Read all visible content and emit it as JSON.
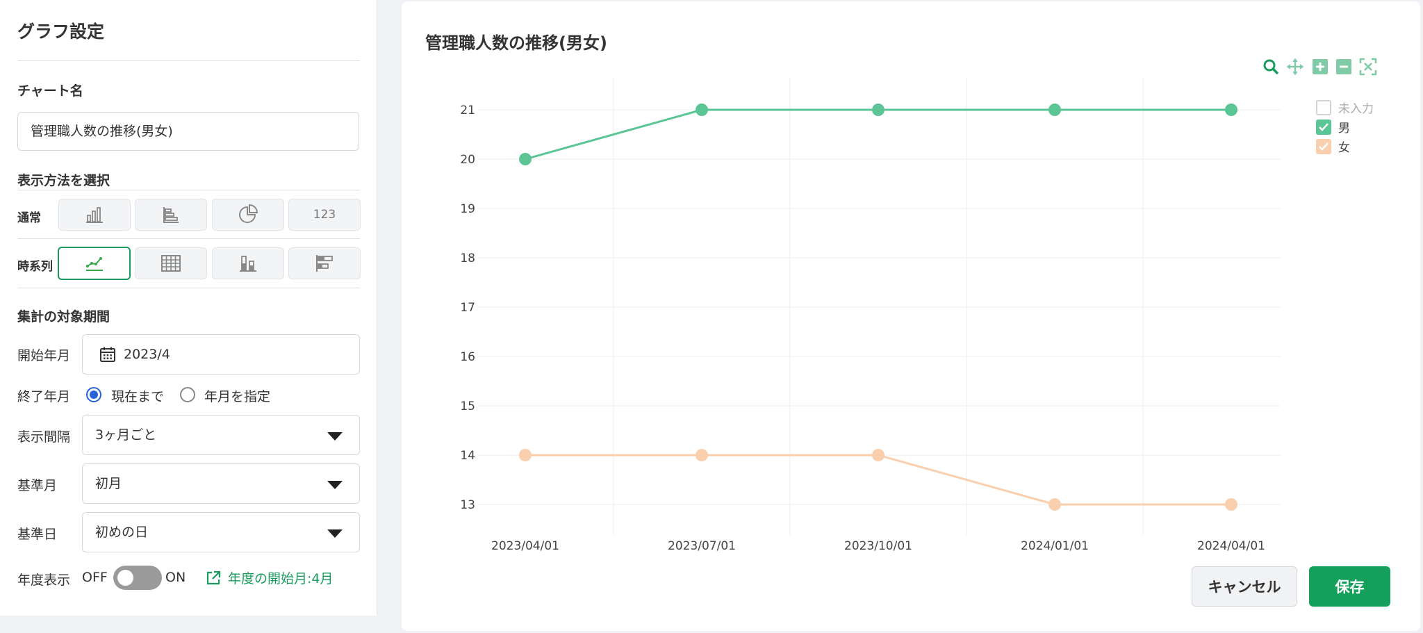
{
  "settings": {
    "title": "グラフ設定",
    "chart_name_label": "チャート名",
    "chart_name_value": "管理職人数の推移(男女)",
    "display_method_label": "表示方法を選択",
    "normal_label": "通常",
    "normal_types": [
      "bar-chart-icon",
      "horizontal-bar-icon",
      "pie-chart-icon",
      "number-icon"
    ],
    "number_label": "123",
    "timeseries_label": "時系列",
    "timeseries_types": [
      "line-chart-icon",
      "table-icon",
      "stacked-bar-icon",
      "horizontal-stacked-bar-icon"
    ],
    "period_label": "集計の対象期間",
    "start_label": "開始年月",
    "start_value": "2023/4",
    "end_label": "終了年月",
    "end_opt1": "現在まで",
    "end_opt2": "年月を指定",
    "interval_label": "表示間隔",
    "interval_value": "3ヶ月ごと",
    "base_month_label": "基準月",
    "base_month_value": "初月",
    "base_day_label": "基準日",
    "base_day_value": "初めの日",
    "fiscal_label": "年度表示",
    "off_label": "OFF",
    "on_label": "ON",
    "fiscal_toggle_on": false,
    "fiscal_link": "年度の開始月:4月"
  },
  "chart": {
    "tools": [
      "zoom-icon",
      "pan-icon",
      "zoom-in-icon",
      "zoom-out-icon",
      "reset-zoom-icon"
    ],
    "legend": [
      {
        "label": "未入力",
        "checked": false,
        "color": "#c8c8c8"
      },
      {
        "label": "男",
        "checked": true,
        "color": "#5bc595"
      },
      {
        "label": "女",
        "checked": true,
        "color": "#f9cfae"
      }
    ]
  },
  "buttons": {
    "cancel": "キャンセル",
    "save": "保存"
  },
  "chart_data": {
    "type": "line",
    "title": "管理職人数の推移(男女)",
    "x": [
      "2023/04/01",
      "2023/07/01",
      "2023/10/01",
      "2024/01/01",
      "2024/04/01"
    ],
    "yticks": [
      13,
      14,
      15,
      16,
      17,
      18,
      19,
      20,
      21
    ],
    "ylim": [
      13,
      21
    ],
    "grid": true,
    "legend_position": "top-right",
    "series": [
      {
        "name": "男",
        "values": [
          20,
          21,
          21,
          21,
          21
        ],
        "color": "#5bc595"
      },
      {
        "name": "女",
        "values": [
          14,
          14,
          14,
          13,
          13
        ],
        "color": "#f9cfae"
      }
    ]
  }
}
